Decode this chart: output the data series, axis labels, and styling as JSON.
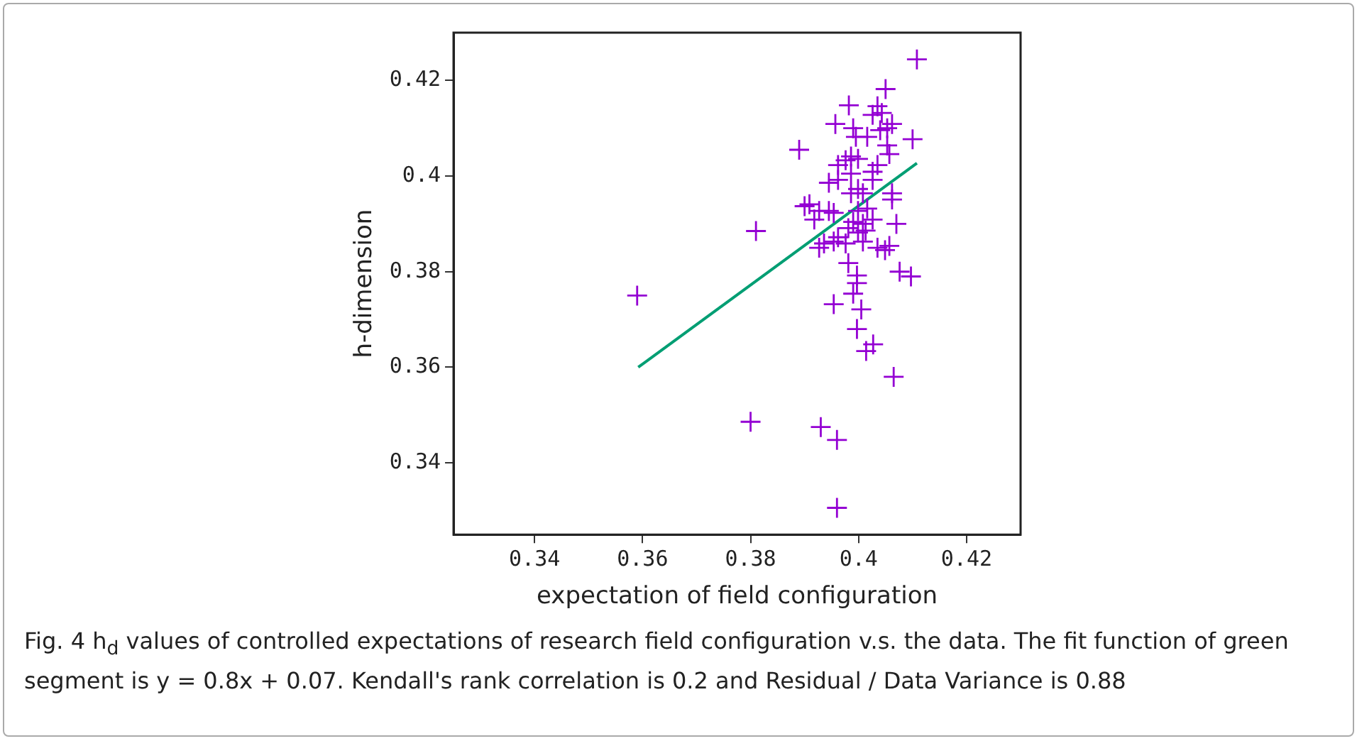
{
  "chart_data": {
    "type": "scatter",
    "xlabel": "expectation of field configuration",
    "ylabel": "h-dimension",
    "xlim": [
      0.325,
      0.43
    ],
    "ylim": [
      0.325,
      0.43
    ],
    "xticks": [
      0.34,
      0.36,
      0.38,
      0.4,
      0.42
    ],
    "yticks": [
      0.34,
      0.36,
      0.38,
      0.4,
      0.42
    ],
    "grid": false,
    "legend": false,
    "marker": "cross",
    "series": [
      {
        "color": "#9400d3",
        "x": [
          0.359,
          0.381,
          0.38,
          0.389,
          0.4108,
          0.3954,
          0.4005,
          0.3997,
          0.4027,
          0.4014,
          0.4065,
          0.393,
          0.396,
          0.396,
          0.399,
          0.3997,
          0.3997,
          0.4076,
          0.4097,
          0.405,
          0.3982,
          0.4035,
          0.4026,
          0.4043,
          0.3957,
          0.399,
          0.404,
          0.4053,
          0.4062,
          0.41,
          0.4016,
          0.3995,
          0.4053,
          0.4057,
          0.3986,
          0.3976,
          0.3999,
          0.3962,
          0.4035,
          0.4026,
          0.3986,
          0.3945,
          0.3962,
          0.4026,
          0.3999,
          0.3986,
          0.4008,
          0.4062,
          0.4062,
          0.3909,
          0.39,
          0.3927,
          0.3945,
          0.3954,
          0.3918,
          0.3999,
          0.4016,
          0.399,
          0.4008,
          0.4026,
          0.407,
          0.3981,
          0.3999,
          0.4013,
          0.3962,
          0.3954,
          0.3936,
          0.3927,
          0.3976,
          0.4008,
          0.4035,
          0.4049,
          0.4057,
          0.3981
        ],
        "values": [
          0.375,
          0.3885,
          0.3486,
          0.4055,
          0.4244,
          0.3732,
          0.3721,
          0.368,
          0.3648,
          0.3634,
          0.358,
          0.3475,
          0.3448,
          0.3306,
          0.3754,
          0.3776,
          0.3792,
          0.38,
          0.379,
          0.4182,
          0.4148,
          0.4146,
          0.4128,
          0.4132,
          0.4109,
          0.41,
          0.4096,
          0.41,
          0.4109,
          0.4077,
          0.4082,
          0.4082,
          0.4064,
          0.4046,
          0.4041,
          0.4033,
          0.4036,
          0.4023,
          0.4023,
          0.4009,
          0.4005,
          0.3986,
          0.3992,
          0.3992,
          0.3973,
          0.3964,
          0.3964,
          0.3964,
          0.3951,
          0.3941,
          0.3937,
          0.3927,
          0.3927,
          0.3923,
          0.3909,
          0.3927,
          0.3932,
          0.3904,
          0.39,
          0.3909,
          0.39,
          0.3891,
          0.3882,
          0.3886,
          0.3872,
          0.3863,
          0.3859,
          0.385,
          0.3859,
          0.3863,
          0.385,
          0.3845,
          0.3854,
          0.3818
        ]
      },
      {
        "type": "line",
        "color": "#009e73",
        "marker": "none",
        "x": [
          0.3592,
          0.4108
        ],
        "values": [
          0.36,
          0.4027
        ]
      }
    ],
    "annotations": [
      "Fig. 4  h$_{d}$ values of controlled expectations of research field configuration v.s. the data. The fit function of green segment is y = 0.8x + 0.07. Kendall's rank correlation is 0.2 and Residual / Data Variance is 0.88"
    ]
  }
}
